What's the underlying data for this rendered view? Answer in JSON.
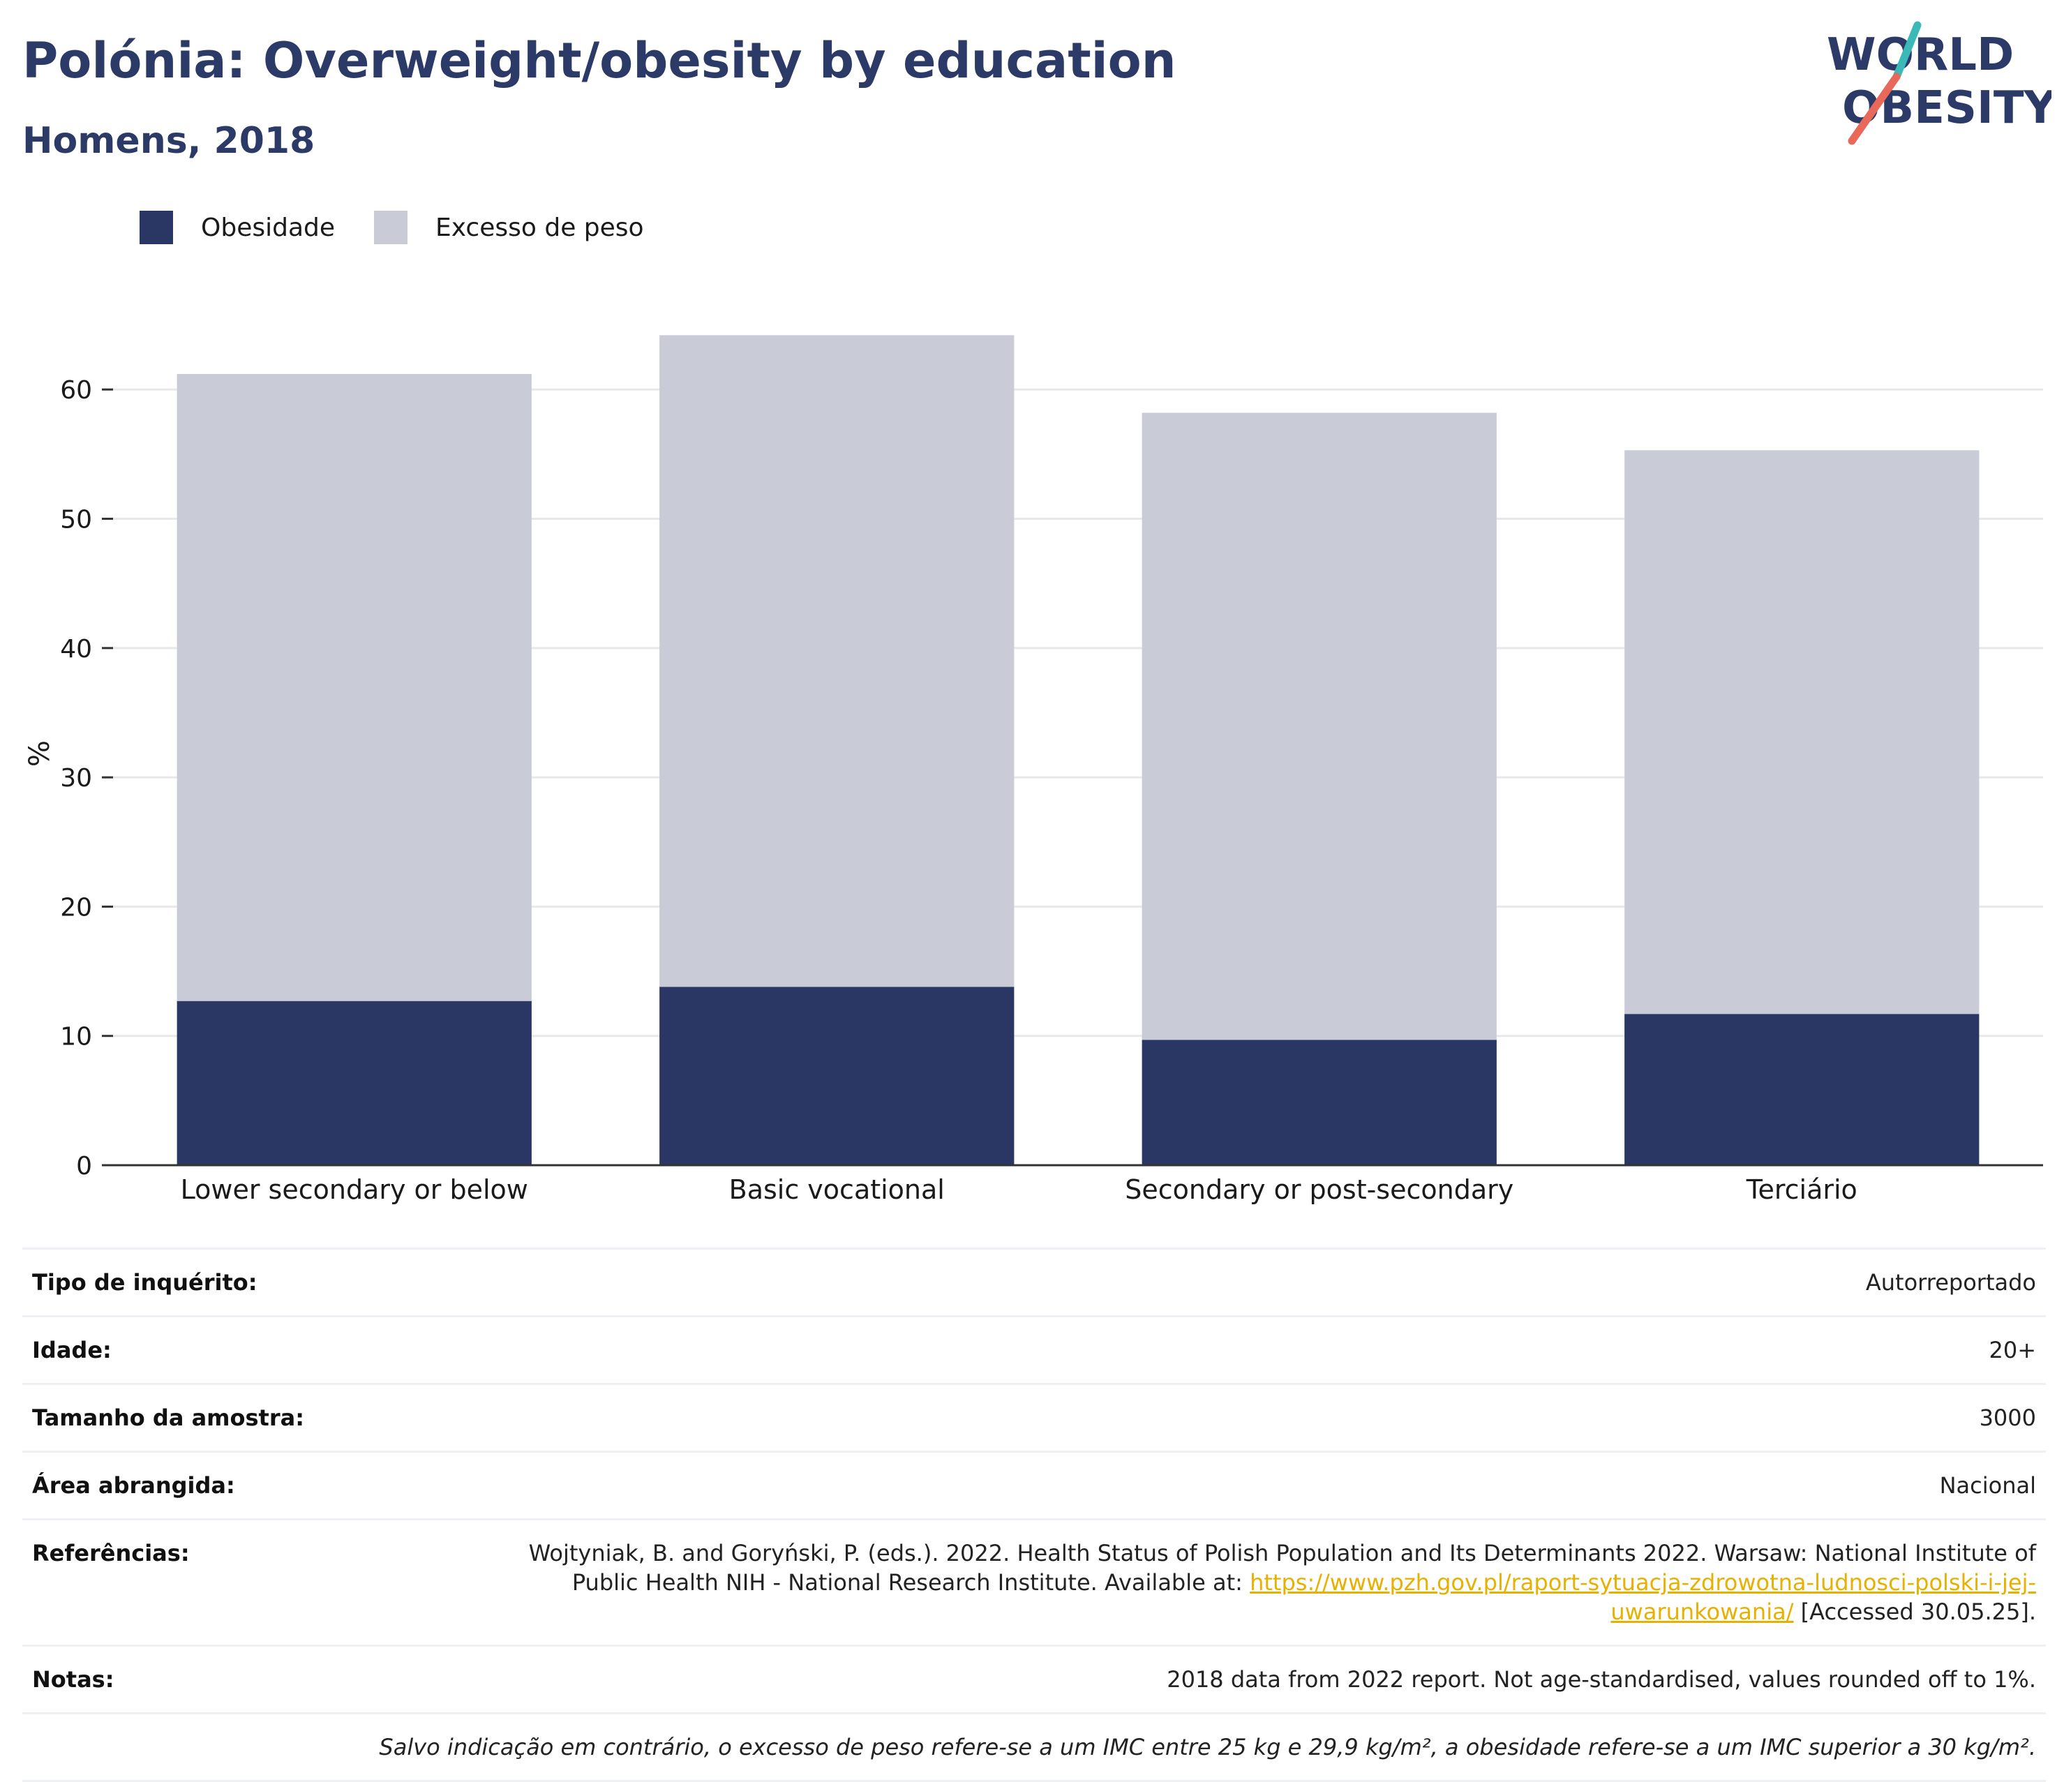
{
  "header": {
    "title": "Polónia: Overweight/obesity by education",
    "subtitle": "Homens, 2018"
  },
  "logo": {
    "line1": "WORLD",
    "line2": "OBESITY"
  },
  "colors": {
    "obesity": "#2a3664",
    "overweight": "#c9cbd7",
    "title": "#2b3a67",
    "logo_teal": "#3bb8b8",
    "logo_coral": "#e8685a"
  },
  "legend": [
    {
      "label": "Obesidade",
      "color": "#2a3664"
    },
    {
      "label": "Excesso de peso",
      "color": "#c9cbd7"
    }
  ],
  "chart_data": {
    "type": "bar",
    "stacked": true,
    "categories": [
      "Lower secondary or below",
      "Basic vocational",
      "Secondary or post-secondary",
      "Terciário"
    ],
    "series": [
      {
        "name": "Obesidade",
        "values": [
          12.7,
          13.8,
          9.7,
          11.7
        ]
      },
      {
        "name": "Excesso de peso",
        "values": [
          48.5,
          50.4,
          48.5,
          43.6
        ]
      }
    ],
    "ylabel": "%",
    "ylim": [
      0,
      68
    ],
    "yticks": [
      0,
      10,
      20,
      30,
      40,
      50,
      60
    ],
    "grid": true,
    "legend_position": "top-left"
  },
  "info": {
    "survey_type": {
      "label": "Tipo de inquérito:",
      "value": "Autorreportado"
    },
    "age": {
      "label": "Idade:",
      "value": "20+"
    },
    "sample_size": {
      "label": "Tamanho da amostra:",
      "value": "3000"
    },
    "area": {
      "label": "Área abrangida:",
      "value": "Nacional"
    },
    "references": {
      "label": "Referências:",
      "text_before": "Wojtyniak, B. and Goryński, P. (eds.). 2022. Health Status of Polish Population and Its Determinants 2022. Warsaw: National Institute of Public Health NIH - National Research Institute. Available at: ",
      "link": "https://www.pzh.gov.pl/raport-sytuacja-zdrowotna-ludnosci-polski-i-jej-uwarunkowania/",
      "text_after": " [Accessed 30.05.25]."
    },
    "notes": {
      "label": "Notas:",
      "value": "2018 data from 2022 report. Not age-standardised, values rounded off to 1%."
    },
    "footnote": "Salvo indicação em contrário, o excesso de peso refere-se a um IMC entre 25 kg e 29,9 kg/m², a obesidade refere-se a um IMC superior a 30 kg/m²."
  }
}
